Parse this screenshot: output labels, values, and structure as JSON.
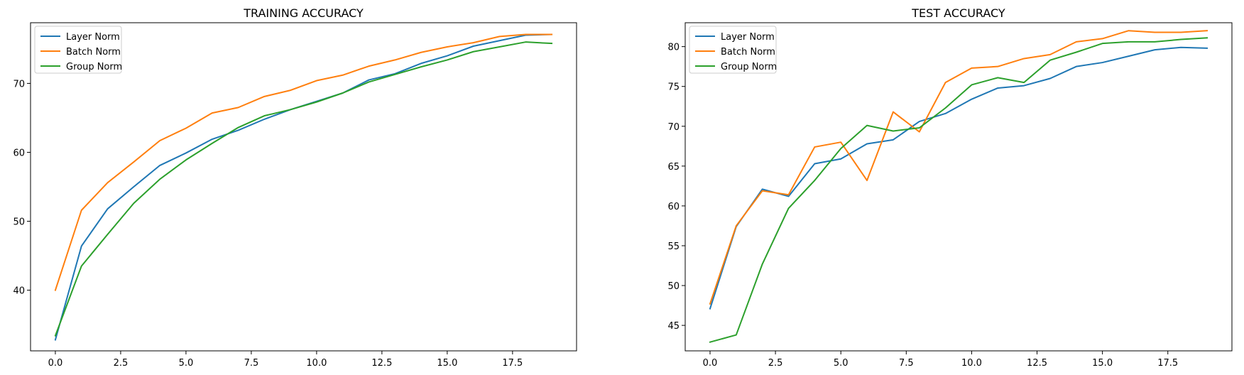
{
  "chart_data": [
    {
      "type": "line",
      "title": "TRAINING ACCURACY",
      "xlabel": "",
      "ylabel": "",
      "xlim": [
        -0.95,
        19.95
      ],
      "ylim": [
        31.2,
        78.8
      ],
      "xticks": [
        0.0,
        2.5,
        5.0,
        7.5,
        10.0,
        12.5,
        15.0,
        17.5
      ],
      "xtick_labels": [
        "0.0",
        "2.5",
        "5.0",
        "7.5",
        "10.0",
        "12.5",
        "15.0",
        "17.5"
      ],
      "yticks": [
        40,
        50,
        60,
        70
      ],
      "ytick_labels": [
        "40",
        "50",
        "60",
        "70"
      ],
      "grid": false,
      "legend": "upper left",
      "x": [
        0,
        1,
        2,
        3,
        4,
        5,
        6,
        7,
        8,
        9,
        10,
        11,
        12,
        13,
        14,
        15,
        16,
        17,
        18,
        19
      ],
      "series": [
        {
          "name": "Layer Norm",
          "color": "#1f77b4",
          "values": [
            32.8,
            46.4,
            51.8,
            55.0,
            58.1,
            59.9,
            61.9,
            63.2,
            64.8,
            66.2,
            67.4,
            68.6,
            70.5,
            71.4,
            72.9,
            74.0,
            75.4,
            76.2,
            77.0,
            77.1
          ]
        },
        {
          "name": "Batch Norm",
          "color": "#ff7f0e",
          "values": [
            40.0,
            51.6,
            55.6,
            58.6,
            61.7,
            63.5,
            65.7,
            66.5,
            68.1,
            69.0,
            70.4,
            71.2,
            72.5,
            73.4,
            74.5,
            75.3,
            75.9,
            76.8,
            77.1,
            77.1
          ]
        },
        {
          "name": "Group Norm",
          "color": "#2ca02c",
          "values": [
            33.4,
            43.5,
            48.1,
            52.6,
            56.1,
            58.9,
            61.3,
            63.6,
            65.3,
            66.2,
            67.3,
            68.6,
            70.2,
            71.3,
            72.4,
            73.4,
            74.6,
            75.3,
            76.0,
            75.8
          ]
        }
      ]
    },
    {
      "type": "line",
      "title": "TEST ACCURACY",
      "xlabel": "",
      "ylabel": "",
      "xlim": [
        -0.95,
        19.95
      ],
      "ylim": [
        41.8,
        83.0
      ],
      "xticks": [
        0.0,
        2.5,
        5.0,
        7.5,
        10.0,
        12.5,
        15.0,
        17.5
      ],
      "xtick_labels": [
        "0.0",
        "2.5",
        "5.0",
        "7.5",
        "10.0",
        "12.5",
        "15.0",
        "17.5"
      ],
      "yticks": [
        45,
        50,
        55,
        60,
        65,
        70,
        75,
        80
      ],
      "ytick_labels": [
        "45",
        "50",
        "55",
        "60",
        "65",
        "70",
        "75",
        "80"
      ],
      "grid": false,
      "legend": "upper left",
      "x": [
        0,
        1,
        2,
        3,
        4,
        5,
        6,
        7,
        8,
        9,
        10,
        11,
        12,
        13,
        14,
        15,
        16,
        17,
        18,
        19
      ],
      "series": [
        {
          "name": "Layer Norm",
          "color": "#1f77b4",
          "values": [
            47.1,
            57.4,
            62.1,
            61.2,
            65.3,
            65.9,
            67.8,
            68.3,
            70.6,
            71.6,
            73.4,
            74.8,
            75.1,
            76.0,
            77.5,
            78.0,
            78.8,
            79.6,
            79.9,
            79.8
          ]
        },
        {
          "name": "Batch Norm",
          "color": "#ff7f0e",
          "values": [
            47.7,
            57.5,
            61.9,
            61.4,
            67.4,
            68.0,
            63.2,
            71.8,
            69.3,
            75.5,
            77.3,
            77.5,
            78.5,
            79.0,
            80.6,
            81.0,
            82.0,
            81.8,
            81.8,
            82.0
          ]
        },
        {
          "name": "Group Norm",
          "color": "#2ca02c",
          "values": [
            42.9,
            43.8,
            52.7,
            59.7,
            63.2,
            67.2,
            70.1,
            69.4,
            69.8,
            72.3,
            75.2,
            76.1,
            75.5,
            78.3,
            79.3,
            80.4,
            80.6,
            80.6,
            80.9,
            81.1
          ]
        }
      ]
    }
  ]
}
